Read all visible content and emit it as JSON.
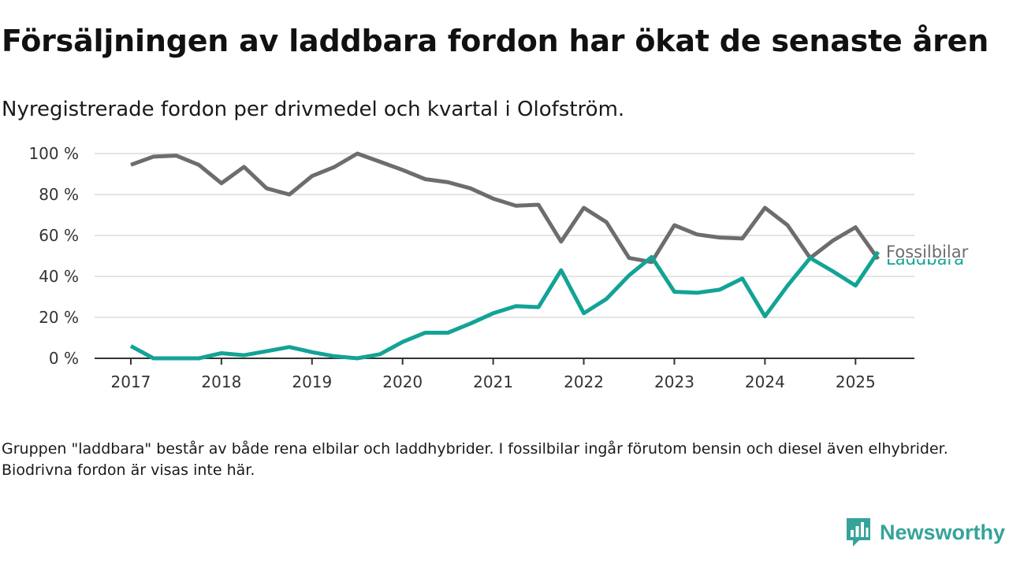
{
  "title": "Försäljningen av laddbara fordon har ökat de senaste åren",
  "subtitle": "Nyregistrerade fordon per drivmedel och kvartal i Olofström.",
  "note": "Gruppen \"laddbara\" består av både rena elbilar och laddhybrider. I fossilbilar ingår förutom bensin och diesel även elhybrider. Biodrivna fordon är visas inte här.",
  "brand": {
    "name": "Newsworthy",
    "icon": "newsworthy-logo-icon",
    "color": "#35a39a"
  },
  "chart_data": {
    "type": "line",
    "x_start": 2017,
    "x_step": 0.25,
    "xlim": [
      2016.6,
      2025.65
    ],
    "ylim": [
      0,
      100
    ],
    "x_ticks": [
      2017,
      2018,
      2019,
      2020,
      2021,
      2022,
      2023,
      2024,
      2025
    ],
    "x_tick_labels": [
      "2017",
      "2018",
      "2019",
      "2020",
      "2021",
      "2022",
      "2023",
      "2024",
      "2025"
    ],
    "y_ticks": [
      0,
      20,
      40,
      60,
      80,
      100
    ],
    "y_tick_labels": [
      "0 %",
      "20 %",
      "40 %",
      "60 %",
      "80 %",
      "100 %"
    ],
    "grid": true,
    "legend": "direct labels at line ends",
    "series": [
      {
        "name": "Fossilbilar",
        "color": "#6d6d70",
        "values": [
          94.5,
          98.5,
          99,
          94.5,
          85.5,
          93.5,
          83,
          80,
          89,
          93.5,
          100,
          96,
          92,
          87.5,
          86,
          83,
          78,
          74.5,
          75,
          57,
          73.5,
          66.5,
          49,
          47,
          65,
          60.5,
          59,
          58.5,
          73.5,
          65,
          49,
          57.5,
          64,
          48.5
        ]
      },
      {
        "name": "Laddbara",
        "color": "#13a396",
        "values": [
          6,
          0,
          0,
          0,
          2.5,
          1.5,
          3.5,
          5.5,
          3,
          1,
          0,
          2,
          8,
          12.5,
          12.5,
          17,
          22,
          25.5,
          25,
          43,
          22,
          29,
          40.5,
          49.5,
          32.5,
          32,
          33.5,
          39,
          20.5,
          35.5,
          49,
          42.5,
          35.5,
          52
        ]
      }
    ]
  }
}
